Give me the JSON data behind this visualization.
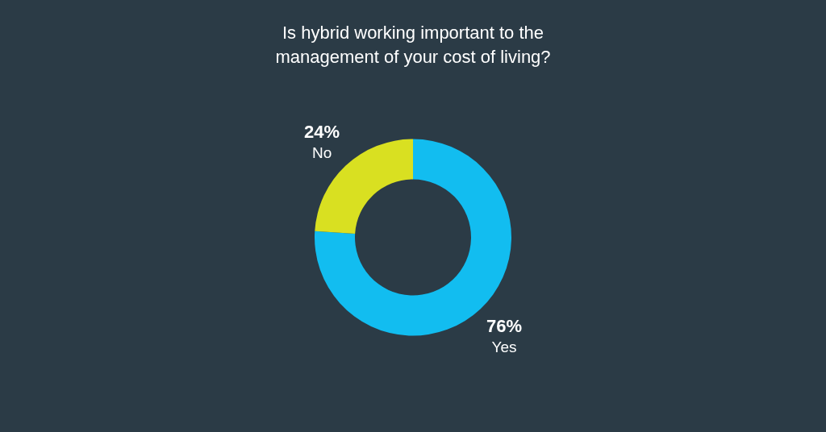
{
  "chart_data": {
    "type": "donut",
    "title": [
      "Is hybrid working important to the",
      "management of your cost of living?"
    ],
    "categories": [
      "Yes",
      "No"
    ],
    "values": [
      76,
      24
    ],
    "colors": [
      "#12bdf0",
      "#d9e021"
    ],
    "value_labels": [
      "76%",
      "24%"
    ],
    "legend": false
  }
}
